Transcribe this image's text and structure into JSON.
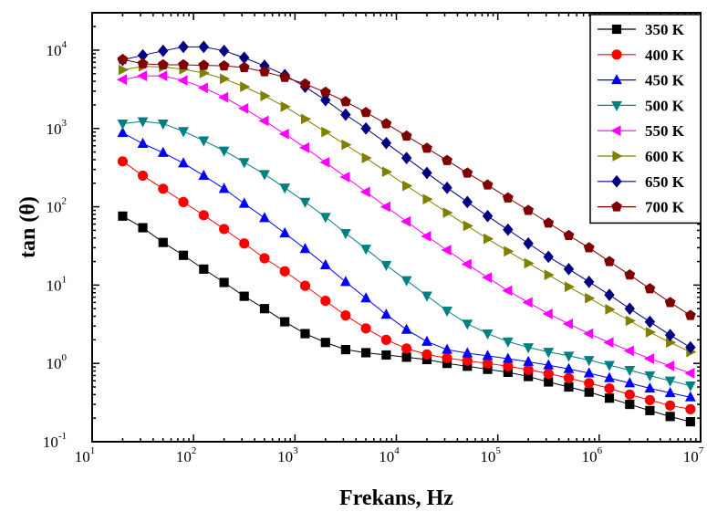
{
  "chart_data": {
    "type": "line",
    "title": "",
    "xlabel": "Frekans, Hz",
    "ylabel": "tan (θ)",
    "x_scale": "log",
    "y_scale": "log",
    "xlim": [
      10,
      10000000
    ],
    "ylim": [
      0.1,
      30000
    ],
    "grid": false,
    "legend_position": "top-right",
    "x_ticks": [
      {
        "base": "10",
        "exp": "1"
      },
      {
        "base": "10",
        "exp": "2"
      },
      {
        "base": "10",
        "exp": "3"
      },
      {
        "base": "10",
        "exp": "4"
      },
      {
        "base": "10",
        "exp": "5"
      },
      {
        "base": "10",
        "exp": "6"
      },
      {
        "base": "10",
        "exp": "7"
      }
    ],
    "y_ticks": [
      {
        "base": "10",
        "exp": "-1"
      },
      {
        "base": "10",
        "exp": "0"
      },
      {
        "base": "10",
        "exp": "1"
      },
      {
        "base": "10",
        "exp": "2"
      },
      {
        "base": "10",
        "exp": "3"
      },
      {
        "base": "10",
        "exp": "4"
      }
    ],
    "x": [
      20,
      31.6,
      50.1,
      79.4,
      126,
      200,
      316,
      501,
      794,
      1260,
      2000,
      3160,
      5010,
      7940,
      12600,
      20000,
      31600,
      50100,
      79400,
      126000,
      200000,
      316000,
      501000,
      794000,
      1260000,
      2000000,
      3160000,
      5010000,
      7940000
    ],
    "series": [
      {
        "name": "350 K",
        "color": "#000000",
        "marker": "square",
        "values": [
          76,
          54,
          35,
          24,
          16,
          10.8,
          7.2,
          5,
          3.4,
          2.4,
          1.85,
          1.5,
          1.37,
          1.28,
          1.2,
          1.12,
          1.0,
          0.92,
          0.84,
          0.77,
          0.68,
          0.58,
          0.5,
          0.43,
          0.36,
          0.3,
          0.25,
          0.21,
          0.18
        ]
      },
      {
        "name": "400 K",
        "color": "#ff0000",
        "marker": "circle",
        "values": [
          380,
          250,
          170,
          115,
          78,
          52,
          34,
          22,
          15,
          9.8,
          6.3,
          4.1,
          2.8,
          2.0,
          1.55,
          1.3,
          1.17,
          1.08,
          1.0,
          0.92,
          0.83,
          0.74,
          0.65,
          0.56,
          0.48,
          0.4,
          0.34,
          0.29,
          0.26
        ]
      },
      {
        "name": "450 K",
        "color": "#0000ff",
        "marker": "triangle-up",
        "values": [
          880,
          640,
          490,
          360,
          250,
          170,
          110,
          72,
          46,
          29,
          18,
          11,
          6.8,
          4.2,
          2.7,
          1.9,
          1.5,
          1.35,
          1.25,
          1.15,
          1.05,
          0.95,
          0.85,
          0.75,
          0.65,
          0.56,
          0.48,
          0.42,
          0.37
        ]
      },
      {
        "name": "500 K",
        "color": "#008080",
        "marker": "triangle-down",
        "values": [
          1150,
          1230,
          1150,
          920,
          700,
          520,
          370,
          260,
          175,
          115,
          74,
          46,
          29,
          18,
          11.5,
          7.3,
          4.7,
          3.2,
          2.4,
          1.9,
          1.6,
          1.4,
          1.25,
          1.1,
          0.95,
          0.82,
          0.7,
          0.6,
          0.52
        ]
      },
      {
        "name": "550 K",
        "color": "#ff00ff",
        "marker": "triangle-left",
        "values": [
          4200,
          4700,
          4700,
          4100,
          3300,
          2500,
          1800,
          1250,
          850,
          570,
          370,
          240,
          155,
          100,
          65,
          42,
          28,
          18.5,
          12.5,
          8.5,
          6,
          4.3,
          3.2,
          2.4,
          1.85,
          1.45,
          1.15,
          0.93,
          0.75
        ]
      },
      {
        "name": "600 K",
        "color": "#808000",
        "marker": "triangle-right",
        "values": [
          5600,
          6200,
          6100,
          5700,
          5100,
          4300,
          3400,
          2600,
          1900,
          1320,
          900,
          620,
          420,
          280,
          185,
          125,
          84,
          57,
          39,
          27,
          19,
          13.5,
          9.5,
          6.8,
          4.9,
          3.5,
          2.5,
          1.85,
          1.4
        ]
      },
      {
        "name": "650 K",
        "color": "#000080",
        "marker": "diamond",
        "values": [
          7500,
          8600,
          9800,
          11000,
          11000,
          9800,
          8000,
          6300,
          4800,
          3400,
          2300,
          1500,
          1000,
          650,
          420,
          270,
          175,
          115,
          76,
          51,
          34,
          23,
          16,
          11,
          7.5,
          5,
          3.4,
          2.3,
          1.6
        ]
      },
      {
        "name": "700 K",
        "color": "#800000",
        "marker": "pentagon",
        "values": [
          7600,
          6700,
          6500,
          6500,
          6400,
          6300,
          6000,
          5300,
          4500,
          3700,
          2900,
          2200,
          1600,
          1150,
          800,
          560,
          390,
          270,
          190,
          130,
          90,
          62,
          43,
          30,
          20,
          13.5,
          9,
          6,
          4.1
        ]
      }
    ]
  }
}
